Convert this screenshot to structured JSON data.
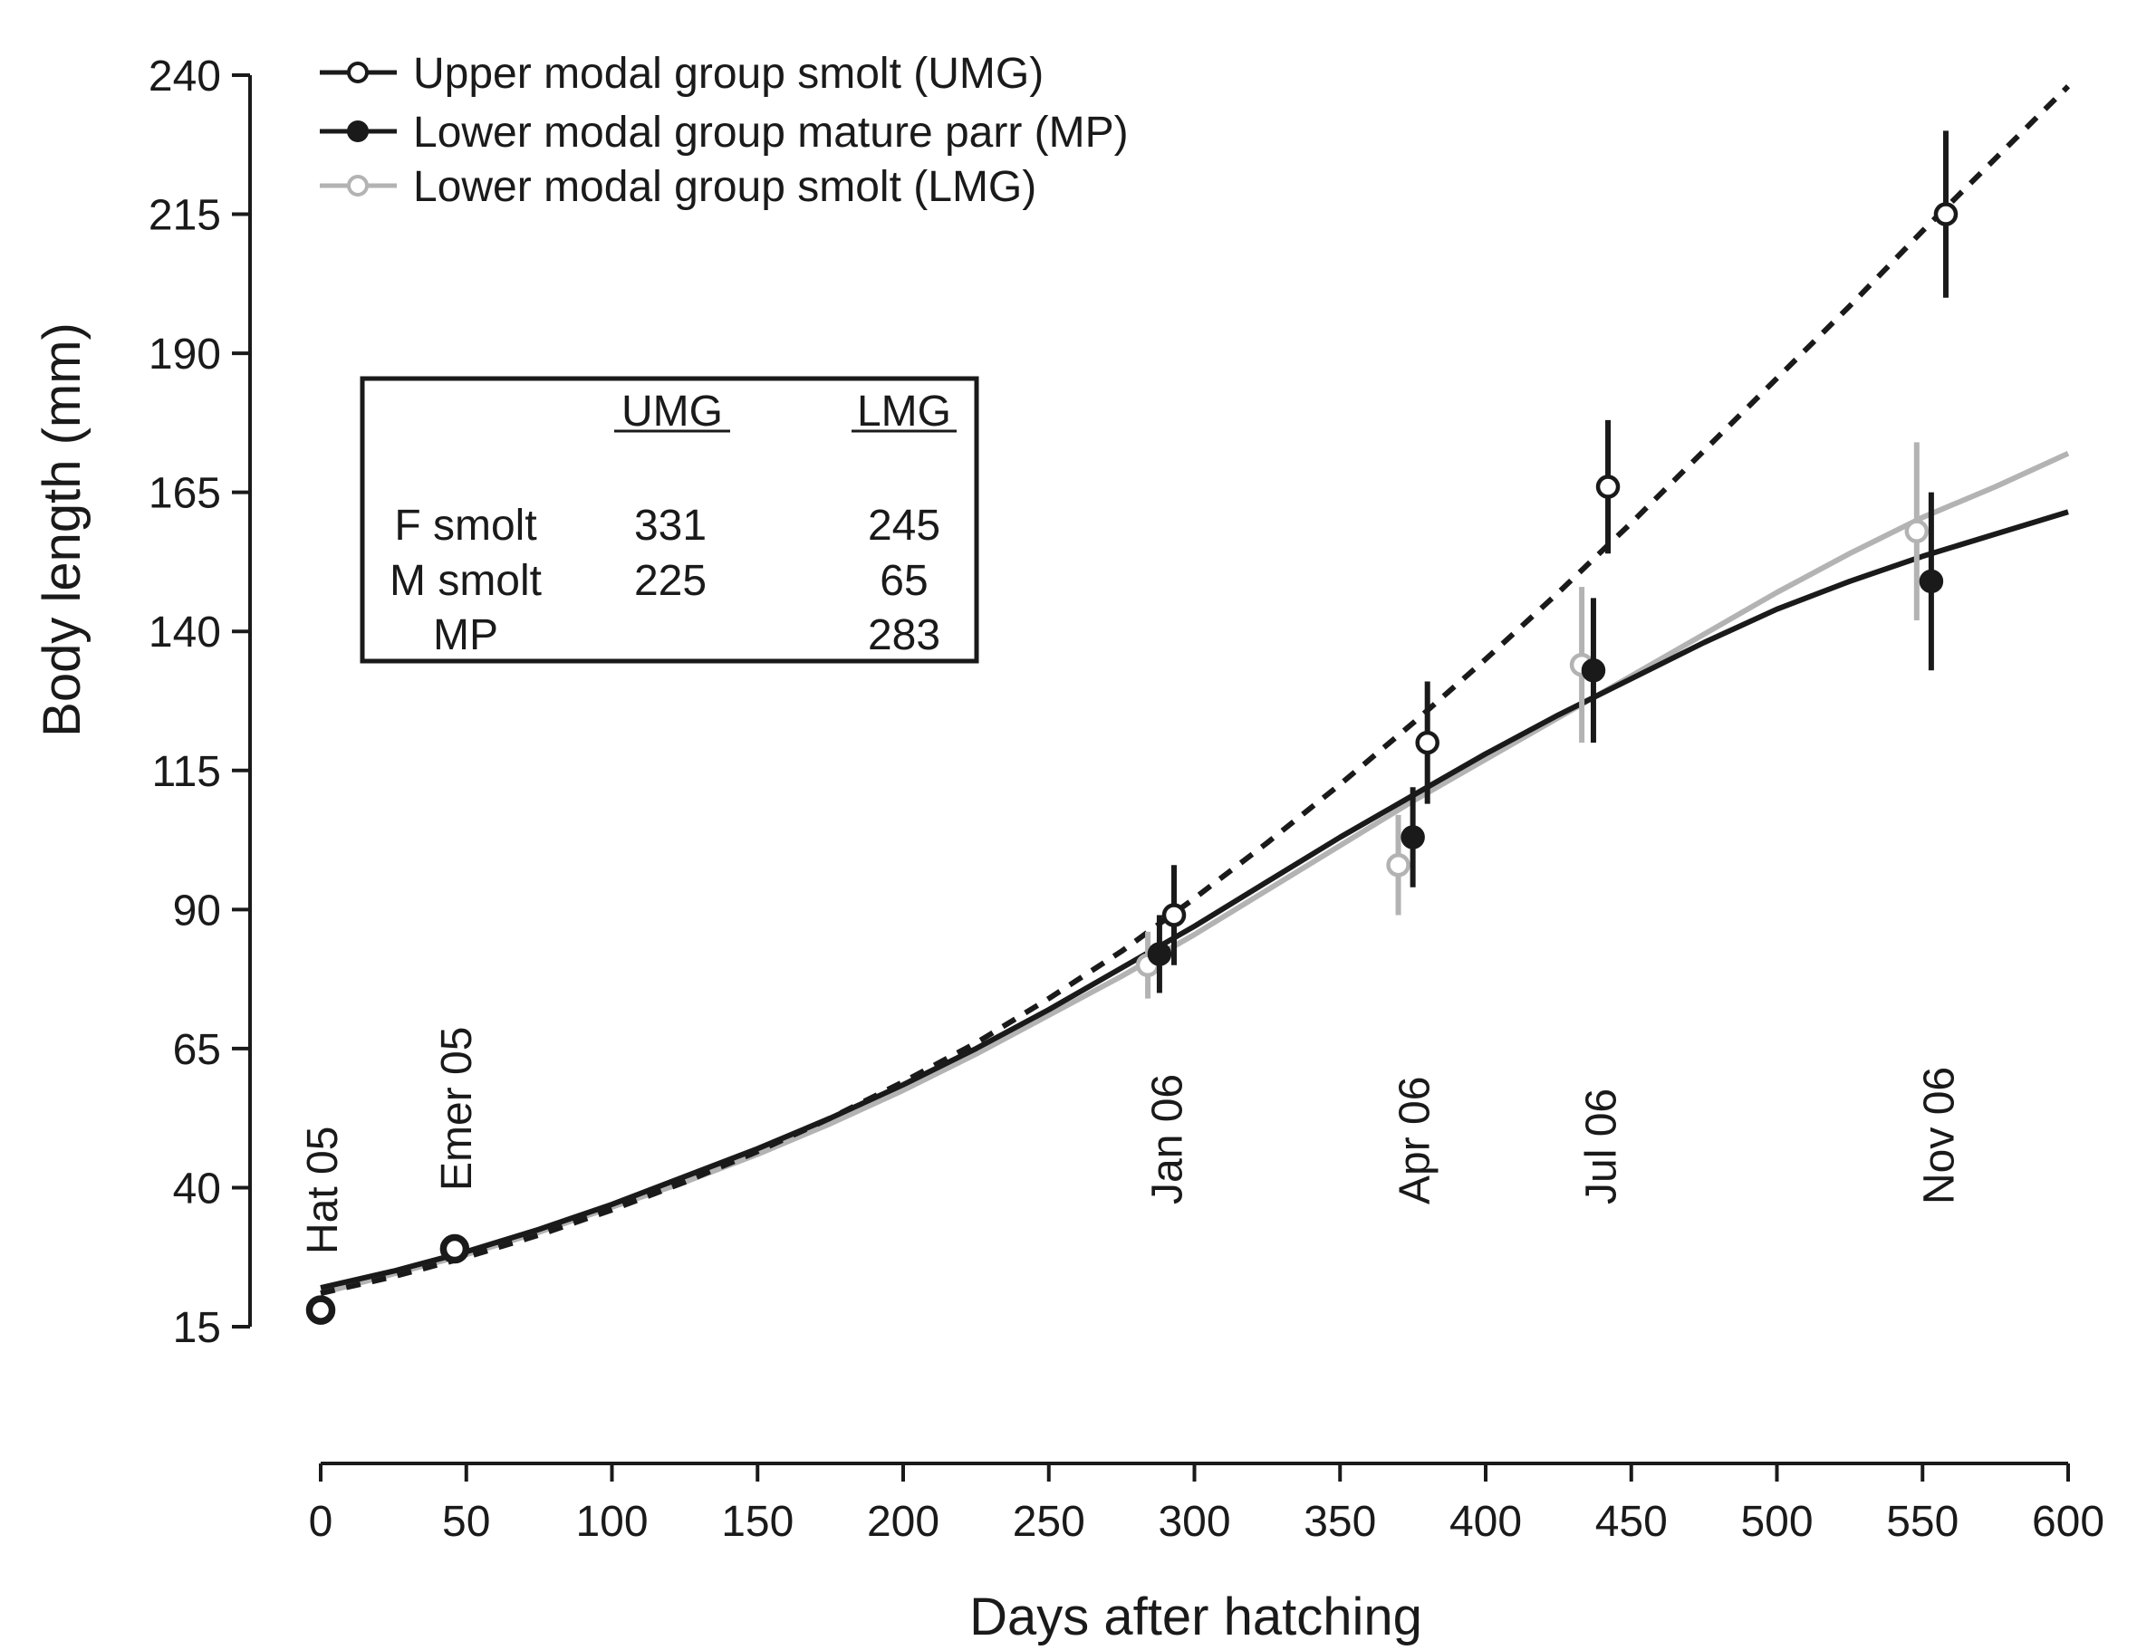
{
  "chart_data": {
    "type": "line",
    "title": "",
    "xlabel": "Days after hatching",
    "ylabel": "Body length (mm)",
    "xlim": [
      0,
      600
    ],
    "ylim": [
      15,
      240
    ],
    "x_ticks": [
      0,
      50,
      100,
      150,
      200,
      250,
      300,
      350,
      400,
      450,
      500,
      550,
      600
    ],
    "y_ticks": [
      15,
      40,
      65,
      90,
      115,
      140,
      165,
      190,
      215,
      240
    ],
    "grid": false,
    "legend_position": "top-left",
    "series": [
      {
        "name": "Upper modal group smolt (UMG)",
        "color": "#1a1a1a",
        "marker": "open-circle",
        "curve_style": "dashed",
        "curve": [
          [
            0,
            21
          ],
          [
            25,
            24
          ],
          [
            50,
            27.5
          ],
          [
            75,
            31.5
          ],
          [
            100,
            36
          ],
          [
            125,
            41
          ],
          [
            150,
            46.5
          ],
          [
            175,
            52.5
          ],
          [
            200,
            59
          ],
          [
            225,
            66
          ],
          [
            250,
            74
          ],
          [
            275,
            82.5
          ],
          [
            300,
            92
          ],
          [
            325,
            102
          ],
          [
            350,
            112.5
          ],
          [
            375,
            123.5
          ],
          [
            400,
            135
          ],
          [
            425,
            147
          ],
          [
            450,
            159.5
          ],
          [
            475,
            172.5
          ],
          [
            500,
            185.5
          ],
          [
            525,
            198.5
          ],
          [
            550,
            212
          ],
          [
            575,
            225
          ],
          [
            600,
            238
          ]
        ],
        "points": [
          {
            "x": 0,
            "y": 18,
            "err": 0
          },
          {
            "x": 46,
            "y": 29,
            "err": 0
          },
          {
            "x": 293,
            "y": 89,
            "err": 9
          },
          {
            "x": 380,
            "y": 120,
            "err": 11
          },
          {
            "x": 442,
            "y": 166,
            "err": 12
          },
          {
            "x": 558,
            "y": 215,
            "err": 15
          }
        ]
      },
      {
        "name": "Lower modal group mature parr (MP)",
        "color": "#1a1a1a",
        "marker": "filled-circle",
        "curve_style": "solid",
        "curve": [
          [
            0,
            22
          ],
          [
            25,
            25
          ],
          [
            50,
            28.5
          ],
          [
            75,
            32.5
          ],
          [
            100,
            37
          ],
          [
            125,
            42
          ],
          [
            150,
            47
          ],
          [
            175,
            52.5
          ],
          [
            200,
            58.5
          ],
          [
            225,
            65
          ],
          [
            250,
            72
          ],
          [
            275,
            79.5
          ],
          [
            300,
            87
          ],
          [
            325,
            95
          ],
          [
            350,
            103
          ],
          [
            375,
            110.5
          ],
          [
            400,
            118
          ],
          [
            425,
            125
          ],
          [
            450,
            131.5
          ],
          [
            475,
            138
          ],
          [
            500,
            144
          ],
          [
            525,
            149
          ],
          [
            550,
            153.5
          ],
          [
            575,
            157.5
          ],
          [
            600,
            161.5
          ]
        ],
        "points": [
          {
            "x": 0,
            "y": 18,
            "err": 0
          },
          {
            "x": 46,
            "y": 29,
            "err": 0
          },
          {
            "x": 288,
            "y": 82,
            "err": 7
          },
          {
            "x": 375,
            "y": 103,
            "err": 9
          },
          {
            "x": 437,
            "y": 133,
            "err": 13
          },
          {
            "x": 553,
            "y": 149,
            "err": 16
          }
        ]
      },
      {
        "name": "Lower modal group smolt (LMG)",
        "color": "#b3b3b3",
        "marker": "open-circle",
        "curve_style": "solid",
        "curve": [
          [
            0,
            21
          ],
          [
            25,
            24.5
          ],
          [
            50,
            28
          ],
          [
            75,
            32
          ],
          [
            100,
            36.5
          ],
          [
            125,
            41
          ],
          [
            150,
            46
          ],
          [
            175,
            51.5
          ],
          [
            200,
            57.5
          ],
          [
            225,
            64
          ],
          [
            250,
            71
          ],
          [
            275,
            78
          ],
          [
            300,
            85.5
          ],
          [
            325,
            93.5
          ],
          [
            350,
            101.5
          ],
          [
            375,
            109.5
          ],
          [
            400,
            117
          ],
          [
            425,
            124.5
          ],
          [
            450,
            132
          ],
          [
            475,
            139.5
          ],
          [
            500,
            147
          ],
          [
            525,
            154
          ],
          [
            550,
            160.5
          ],
          [
            575,
            166
          ],
          [
            600,
            172
          ]
        ],
        "points": [
          {
            "x": 284,
            "y": 80,
            "err": 6
          },
          {
            "x": 370,
            "y": 98,
            "err": 9
          },
          {
            "x": 433,
            "y": 134,
            "err": 14
          },
          {
            "x": 548,
            "y": 158,
            "err": 16
          }
        ]
      }
    ],
    "annotations": [
      {
        "text": "Hat 05",
        "x": 0
      },
      {
        "text": "Emer 05",
        "x": 46
      },
      {
        "text": "Jan 06",
        "x": 290
      },
      {
        "text": "Apr 06",
        "x": 375
      },
      {
        "text": "Jul 06",
        "x": 439
      },
      {
        "text": "Nov 06",
        "x": 555
      }
    ],
    "inset_table": {
      "headers": [
        "",
        "UMG",
        "LMG"
      ],
      "rows": [
        [
          "F smolt",
          "331",
          "245"
        ],
        [
          "M smolt",
          "225",
          "65"
        ],
        [
          "MP",
          "",
          "283"
        ]
      ]
    }
  }
}
